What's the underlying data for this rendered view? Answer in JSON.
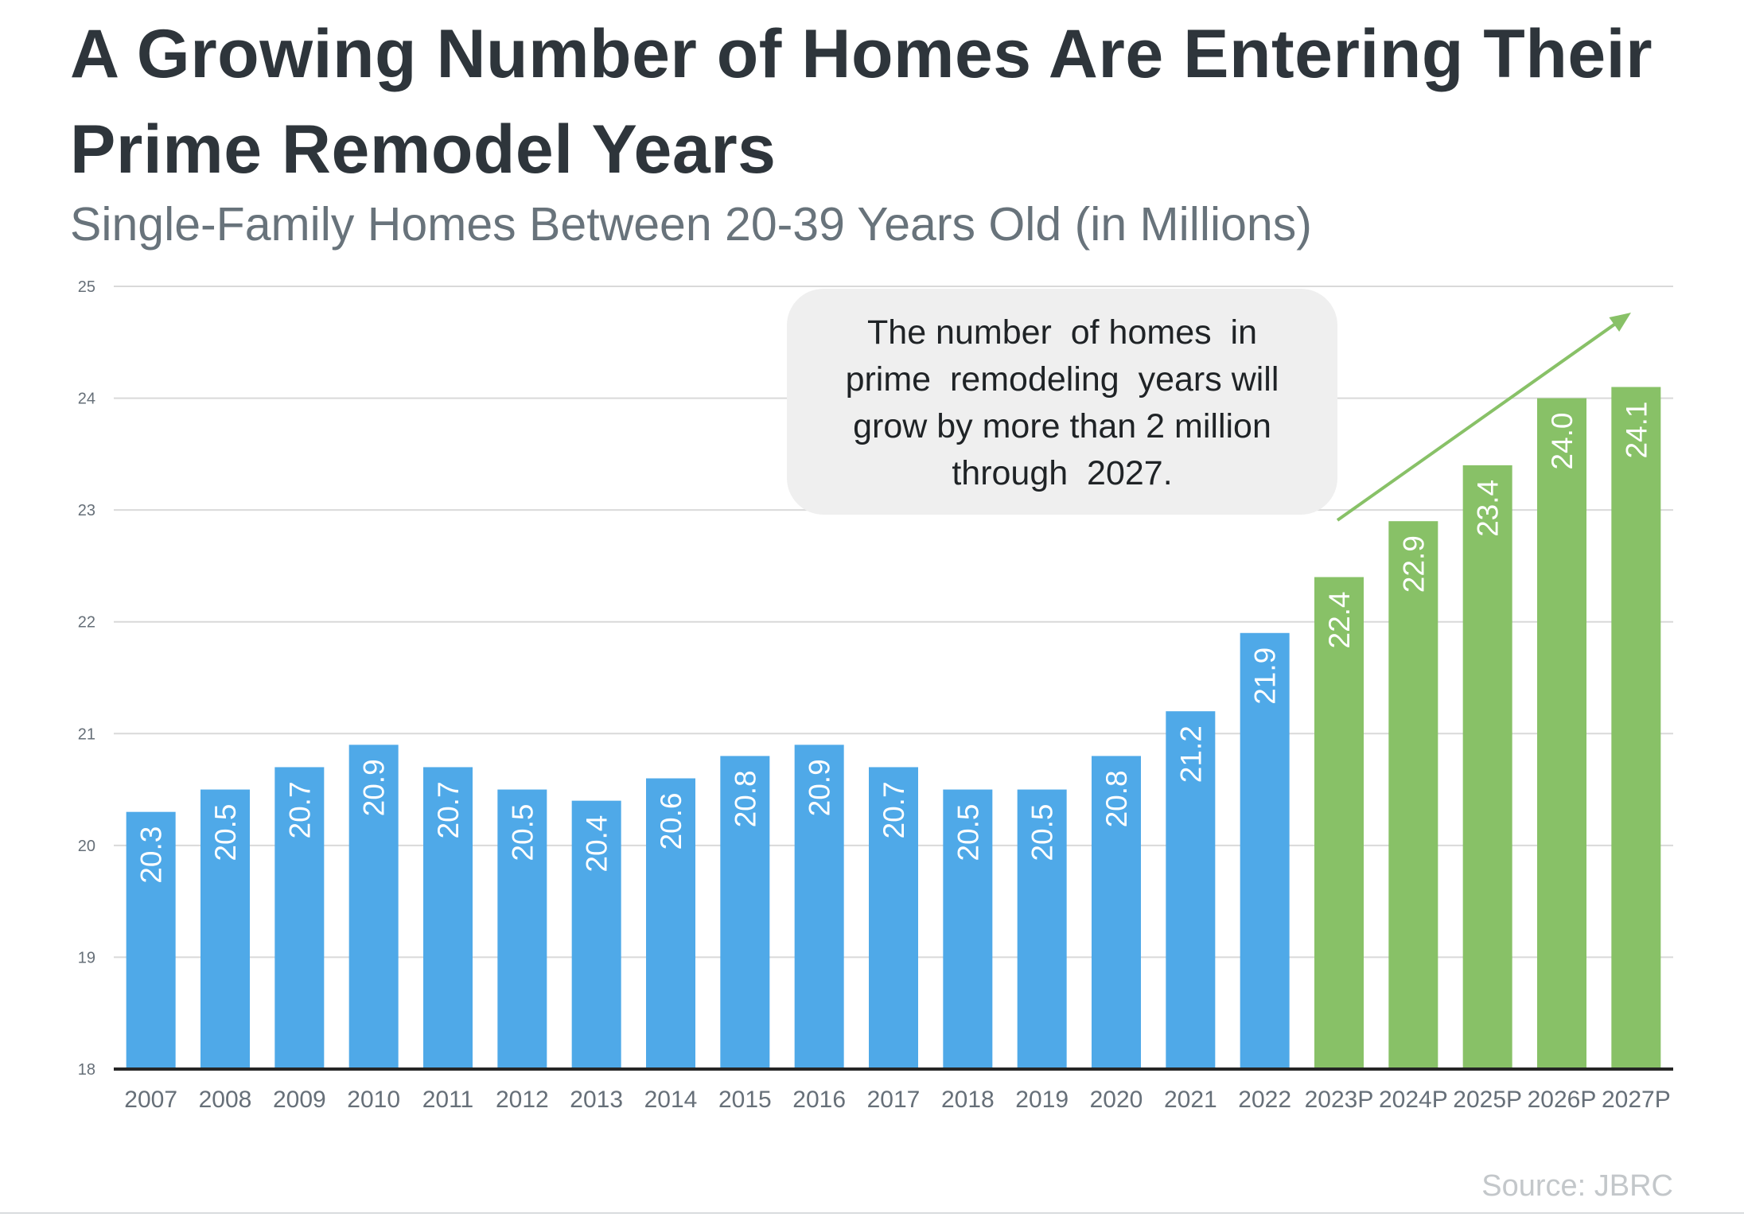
{
  "title": "A Growing Number of Homes Are Entering Their Prime Remodel Years",
  "subtitle": "Single-Family Homes Between 20-39 Years Old (in Millions)",
  "source": "Source: JBRC",
  "colors": {
    "actual": "#4fa9e8",
    "projected": "#88c167",
    "arrow": "#88c167",
    "callout_bg": "#efefef",
    "grid": "#d9d9d9",
    "axis": "#262626",
    "tick_text": "#666f78",
    "bar_label": "#ffffff"
  },
  "chart_data": {
    "type": "bar",
    "categories": [
      "2007",
      "2008",
      "2009",
      "2010",
      "2011",
      "2012",
      "2013",
      "2014",
      "2015",
      "2016",
      "2017",
      "2018",
      "2019",
      "2020",
      "2021",
      "2022",
      "2023P",
      "2024P",
      "2025P",
      "2026P",
      "2027P"
    ],
    "values": [
      20.3,
      20.5,
      20.7,
      20.9,
      20.7,
      20.5,
      20.4,
      20.6,
      20.8,
      20.9,
      20.7,
      20.5,
      20.5,
      20.8,
      21.2,
      21.9,
      22.4,
      22.9,
      23.4,
      24.0,
      24.1
    ],
    "data_labels": [
      "20.3",
      "20.5",
      "20.7",
      "20.9",
      "20.7",
      "20.5",
      "20.4",
      "20.6",
      "20.8",
      "20.9",
      "20.7",
      "20.5",
      "20.5",
      "20.8",
      "21.2",
      "21.9",
      "22.4",
      "22.9",
      "23.4",
      "24.0",
      "24.1"
    ],
    "projected_from_index": 16,
    "ylim": [
      18,
      25
    ],
    "yticks": [
      "18",
      "19",
      "20",
      "21",
      "22",
      "23",
      "24",
      "25"
    ],
    "xlabel": "",
    "ylabel": "",
    "grid": true,
    "legend": false,
    "annotation": {
      "lines": [
        "The number  of homes  in",
        "prime  remodeling  years will",
        "grow by more than 2 million",
        "through  2027."
      ],
      "arrow": "upward trend arrow over projected bars"
    }
  }
}
